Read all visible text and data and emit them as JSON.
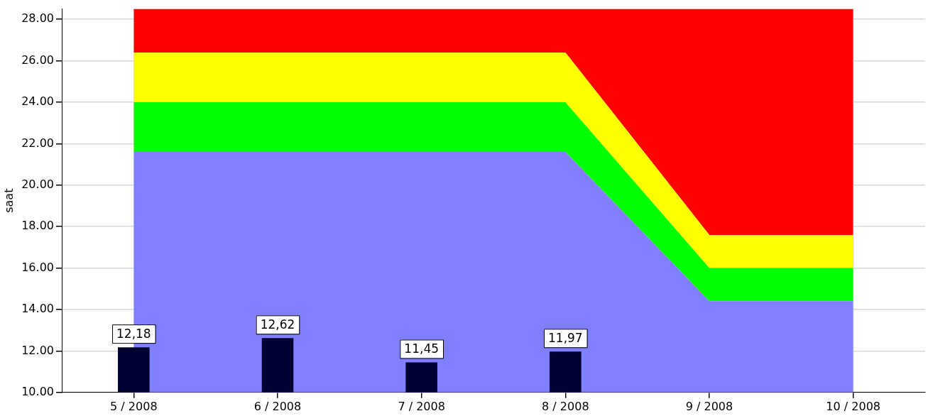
{
  "chart_data": {
    "type": "bar",
    "ylabel": "saat",
    "categories": [
      "5 / 2008",
      "6 / 2008",
      "7 / 2008",
      "8 / 2008",
      "9 / 2008",
      "10 / 2008"
    ],
    "series": [
      {
        "type": "area",
        "color": "#8080ff",
        "values": [
          21.6,
          21.6,
          21.6,
          21.6,
          14.4,
          14.4
        ]
      },
      {
        "type": "area",
        "color": "#00ff00",
        "values": [
          24.0,
          24.0,
          24.0,
          24.0,
          16.0,
          16.0
        ]
      },
      {
        "type": "area",
        "color": "#ffff00",
        "values": [
          26.4,
          26.4,
          26.4,
          26.4,
          17.6,
          17.6
        ]
      },
      {
        "type": "area",
        "color": "#ff0000",
        "values": [
          28.5,
          28.5,
          28.5,
          28.5,
          28.5,
          28.5
        ]
      },
      {
        "color": "#000033",
        "values": [
          12.18,
          12.62,
          11.45,
          11.97,
          null,
          null
        ],
        "value_labels": [
          "12,18",
          "12,62",
          "11,45",
          "11,97",
          null,
          null
        ]
      }
    ],
    "ylim": [
      10,
      28.5
    ],
    "yticks": [
      {
        "value": 10,
        "label": "10.00"
      },
      {
        "value": 12,
        "label": "12.00"
      },
      {
        "value": 14,
        "label": "14.00"
      },
      {
        "value": 16,
        "label": "16.00"
      },
      {
        "value": 18,
        "label": "18.00"
      },
      {
        "value": 20,
        "label": "20.00"
      },
      {
        "value": 22,
        "label": "22.00"
      },
      {
        "value": 24,
        "label": "24.00"
      },
      {
        "value": 26,
        "label": "26.00"
      },
      {
        "value": 28,
        "label": "28.00"
      }
    ],
    "grid": true,
    "legend": false
  }
}
